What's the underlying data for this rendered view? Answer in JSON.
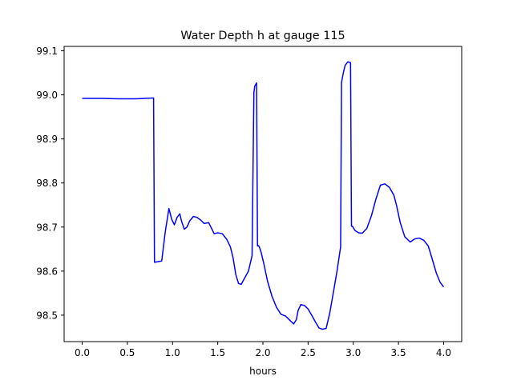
{
  "chart_data": {
    "type": "line",
    "title": "Water Depth h at gauge 115",
    "xlabel": "hours",
    "ylabel": "",
    "xlim": [
      -0.2,
      4.2
    ],
    "ylim": [
      98.44,
      99.11
    ],
    "xticks": [
      0.0,
      0.5,
      1.0,
      1.5,
      2.0,
      2.5,
      3.0,
      3.5,
      4.0
    ],
    "xtick_labels": [
      "0.0",
      "0.5",
      "1.0",
      "1.5",
      "2.0",
      "2.5",
      "3.0",
      "3.5",
      "4.0"
    ],
    "yticks": [
      98.5,
      98.6,
      98.7,
      98.8,
      98.9,
      99.0,
      99.1
    ],
    "ytick_labels": [
      "98.5",
      "98.6",
      "98.7",
      "98.8",
      "98.9",
      "99.0",
      "99.1"
    ],
    "grid": false,
    "legend": false,
    "series": [
      {
        "color": "#0000ff",
        "x": [
          0.0,
          0.2,
          0.4,
          0.6,
          0.78,
          0.79,
          0.8,
          0.88,
          0.92,
          0.96,
          0.99,
          1.02,
          1.05,
          1.08,
          1.1,
          1.13,
          1.16,
          1.19,
          1.23,
          1.27,
          1.31,
          1.35,
          1.4,
          1.46,
          1.5,
          1.55,
          1.6,
          1.64,
          1.67,
          1.7,
          1.73,
          1.76,
          1.8,
          1.84,
          1.88,
          1.9,
          1.91,
          1.93,
          1.94,
          1.95,
          1.96,
          1.98,
          2.01,
          2.05,
          2.1,
          2.15,
          2.2,
          2.25,
          2.3,
          2.34,
          2.37,
          2.39,
          2.42,
          2.46,
          2.5,
          2.54,
          2.58,
          2.62,
          2.66,
          2.7,
          2.74,
          2.78,
          2.82,
          2.86,
          2.87,
          2.89,
          2.91,
          2.94,
          2.97,
          2.98,
          2.99,
          3.02,
          3.06,
          3.1,
          3.15,
          3.2,
          3.25,
          3.3,
          3.35,
          3.4,
          3.45,
          3.48,
          3.52,
          3.57,
          3.63,
          3.68,
          3.73,
          3.78,
          3.83,
          3.87,
          3.92,
          3.96,
          4.0
        ],
        "y": [
          98.992,
          98.992,
          98.991,
          98.991,
          98.993,
          98.993,
          98.62,
          98.623,
          98.69,
          98.742,
          98.718,
          98.705,
          98.722,
          98.73,
          98.713,
          98.695,
          98.7,
          98.714,
          98.724,
          98.722,
          98.716,
          98.708,
          98.71,
          98.685,
          98.687,
          98.685,
          98.672,
          98.655,
          98.63,
          98.592,
          98.572,
          98.57,
          98.585,
          98.6,
          98.635,
          99.005,
          99.02,
          99.027,
          98.657,
          98.658,
          98.655,
          98.643,
          98.617,
          98.578,
          98.543,
          98.518,
          98.502,
          98.498,
          98.488,
          98.48,
          98.49,
          98.511,
          98.524,
          98.522,
          98.514,
          98.5,
          98.485,
          98.471,
          98.468,
          98.47,
          98.505,
          98.552,
          98.6,
          98.655,
          99.028,
          99.05,
          99.067,
          99.075,
          99.073,
          98.702,
          98.702,
          98.692,
          98.687,
          98.686,
          98.697,
          98.725,
          98.763,
          98.795,
          98.798,
          98.79,
          98.772,
          98.748,
          98.71,
          98.678,
          98.666,
          98.673,
          98.675,
          98.67,
          98.657,
          98.63,
          98.595,
          98.575,
          98.564
        ]
      }
    ]
  }
}
